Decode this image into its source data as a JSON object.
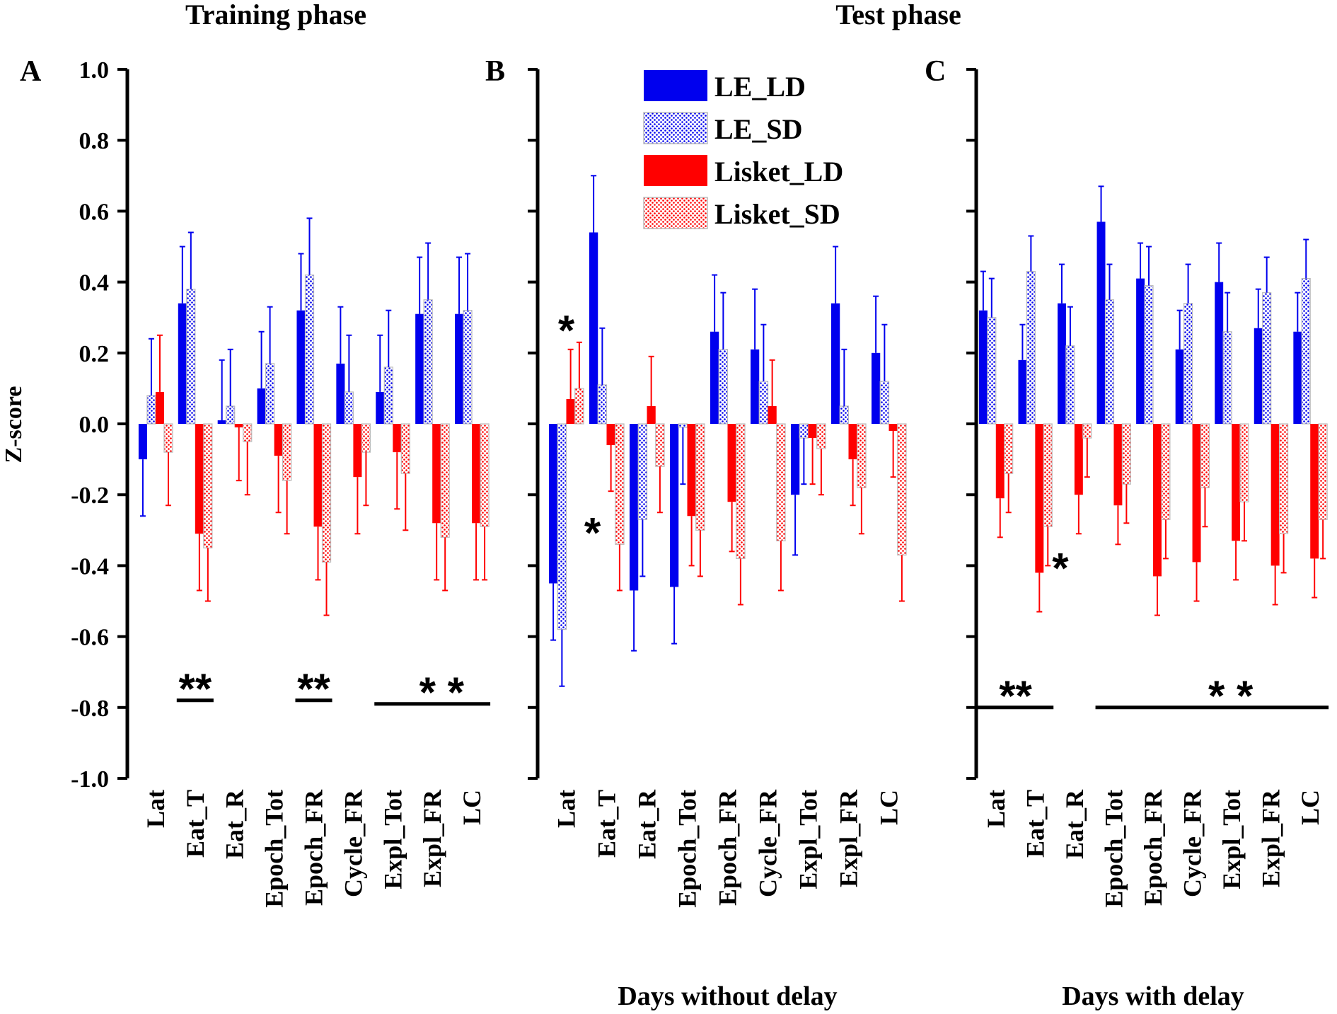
{
  "figure": {
    "title_training": "Training phase",
    "title_test": "Test phase",
    "y_axis_label": "Z-score",
    "y_tick_labels": [
      "1.0",
      "0.8",
      "0.6",
      "0.4",
      "0.2",
      "0.0",
      "-0.2",
      "-0.4",
      "-0.6",
      "-0.8",
      "-1.0"
    ],
    "colors": {
      "LE": "#0000ee",
      "Lisket": "#ff0000",
      "axis": "#000000"
    },
    "legend": [
      {
        "label": "LE_LD",
        "color": "#0000ee",
        "pattern": "solid"
      },
      {
        "label": "LE_SD",
        "color": "#0000ee",
        "pattern": "dotted"
      },
      {
        "label": "Lisket_LD",
        "color": "#ff0000",
        "pattern": "solid"
      },
      {
        "label": "Lisket_SD",
        "color": "#ff0000",
        "pattern": "dotted"
      }
    ]
  },
  "chart_data": [
    {
      "panel": "A",
      "type": "bar",
      "xlabel": "",
      "ylabel": "Z-score",
      "ylim": [
        -1.0,
        1.0
      ],
      "categories": [
        "Lat",
        "Eat_T",
        "Eat_R",
        "Epoch_Tot",
        "Epoch_FR",
        "Cycle_FR",
        "Expl_Tot",
        "Expl_FR",
        "LC"
      ],
      "series": [
        {
          "name": "LE_LD",
          "values": [
            -0.1,
            0.34,
            0.01,
            0.1,
            0.32,
            0.17,
            0.09,
            0.31,
            0.31
          ],
          "errors": [
            0.16,
            0.16,
            0.17,
            0.16,
            0.16,
            0.16,
            0.16,
            0.16,
            0.16
          ]
        },
        {
          "name": "LE_SD",
          "values": [
            0.08,
            0.38,
            0.05,
            0.17,
            0.42,
            0.09,
            0.16,
            0.35,
            0.32
          ],
          "errors": [
            0.16,
            0.16,
            0.16,
            0.16,
            0.16,
            0.16,
            0.16,
            0.16,
            0.16
          ]
        },
        {
          "name": "Lisket_LD",
          "values": [
            0.09,
            -0.31,
            -0.01,
            -0.09,
            -0.29,
            -0.15,
            -0.08,
            -0.28,
            -0.28
          ],
          "errors": [
            0.16,
            0.16,
            0.15,
            0.16,
            0.15,
            0.16,
            0.16,
            0.16,
            0.16
          ]
        },
        {
          "name": "Lisket_SD",
          "values": [
            -0.08,
            -0.35,
            -0.05,
            -0.16,
            -0.39,
            -0.08,
            -0.14,
            -0.32,
            -0.29
          ],
          "errors": [
            0.15,
            0.15,
            0.15,
            0.15,
            0.15,
            0.15,
            0.16,
            0.15,
            0.15
          ]
        }
      ],
      "significance": [
        {
          "text": "**",
          "from": "Eat_T",
          "to": "Eat_T",
          "y": -0.78
        },
        {
          "text": "**",
          "from": "Epoch_FR",
          "to": "Epoch_FR",
          "y": -0.78
        },
        {
          "text": "* *",
          "from": "Expl_Tot",
          "to": "LC",
          "y": -0.79
        }
      ]
    },
    {
      "panel": "B",
      "type": "bar",
      "xlabel": "Days without delay",
      "ylabel": "",
      "ylim": [
        -1.0,
        1.0
      ],
      "categories": [
        "Lat",
        "Eat_T",
        "Eat_R",
        "Epoch_Tot",
        "Epoch_FR",
        "Cycle_FR",
        "Expl_Tot",
        "Expl_FR",
        "LC"
      ],
      "series": [
        {
          "name": "LE_LD",
          "values": [
            -0.45,
            0.54,
            -0.47,
            -0.46,
            0.26,
            0.21,
            -0.2,
            0.34,
            0.2
          ],
          "errors": [
            0.16,
            0.16,
            0.17,
            0.16,
            0.16,
            0.17,
            0.17,
            0.16,
            0.16
          ]
        },
        {
          "name": "LE_SD",
          "values": [
            -0.58,
            0.11,
            -0.27,
            -0.01,
            0.21,
            0.12,
            -0.04,
            0.05,
            0.12
          ],
          "errors": [
            0.16,
            0.16,
            0.16,
            0.16,
            0.16,
            0.16,
            0.13,
            0.16,
            0.16
          ]
        },
        {
          "name": "Lisket_LD",
          "values": [
            0.07,
            -0.06,
            0.05,
            -0.26,
            -0.22,
            0.05,
            -0.04,
            -0.1,
            -0.02
          ],
          "errors": [
            0.14,
            0.13,
            0.14,
            0.14,
            0.14,
            0.13,
            0.13,
            0.13,
            0.13
          ]
        },
        {
          "name": "Lisket_SD",
          "values": [
            0.1,
            -0.34,
            -0.12,
            -0.3,
            -0.38,
            -0.33,
            -0.07,
            -0.18,
            -0.37
          ],
          "errors": [
            0.13,
            0.13,
            0.13,
            0.13,
            0.13,
            0.14,
            0.13,
            0.13,
            0.13
          ]
        }
      ],
      "significance": [
        {
          "text": "*",
          "at": "Lat",
          "y": 0.27
        },
        {
          "text": "*",
          "at": "Eat_T",
          "y": -0.3
        }
      ]
    },
    {
      "panel": "C",
      "type": "bar",
      "xlabel": "Days with delay",
      "ylabel": "",
      "ylim": [
        -1.0,
        1.0
      ],
      "categories": [
        "Lat",
        "Eat_T",
        "Eat_R",
        "Epoch_Tot",
        "Epoch_FR",
        "Cycle_FR",
        "Expl_Tot",
        "Expl_FR",
        "LC"
      ],
      "series": [
        {
          "name": "LE_LD",
          "values": [
            0.32,
            0.18,
            0.34,
            0.57,
            0.41,
            0.21,
            0.4,
            0.27,
            0.26
          ],
          "errors": [
            0.11,
            0.1,
            0.11,
            0.1,
            0.1,
            0.11,
            0.11,
            0.11,
            0.11
          ]
        },
        {
          "name": "LE_SD",
          "values": [
            0.3,
            0.43,
            0.22,
            0.35,
            0.39,
            0.34,
            0.26,
            0.37,
            0.41
          ],
          "errors": [
            0.11,
            0.1,
            0.11,
            0.1,
            0.11,
            0.11,
            0.11,
            0.1,
            0.11
          ]
        },
        {
          "name": "Lisket_LD",
          "values": [
            -0.21,
            -0.42,
            -0.2,
            -0.23,
            -0.43,
            -0.39,
            -0.33,
            -0.4,
            -0.38
          ],
          "errors": [
            0.11,
            0.11,
            0.11,
            0.11,
            0.11,
            0.11,
            0.11,
            0.11,
            0.11
          ]
        },
        {
          "name": "Lisket_SD",
          "values": [
            -0.14,
            -0.29,
            -0.04,
            -0.17,
            -0.27,
            -0.18,
            -0.22,
            -0.31,
            -0.27
          ],
          "errors": [
            0.11,
            0.11,
            0.11,
            0.11,
            0.11,
            0.11,
            0.11,
            0.11,
            0.11
          ]
        }
      ],
      "significance": [
        {
          "text": "**",
          "from": "Lat",
          "to": "Eat_T",
          "y": -0.8
        },
        {
          "text": "*",
          "at": "Eat_R",
          "y": -0.4
        },
        {
          "text": "* *",
          "from": "Epoch_Tot",
          "to": "LC",
          "y": -0.8
        }
      ]
    }
  ]
}
